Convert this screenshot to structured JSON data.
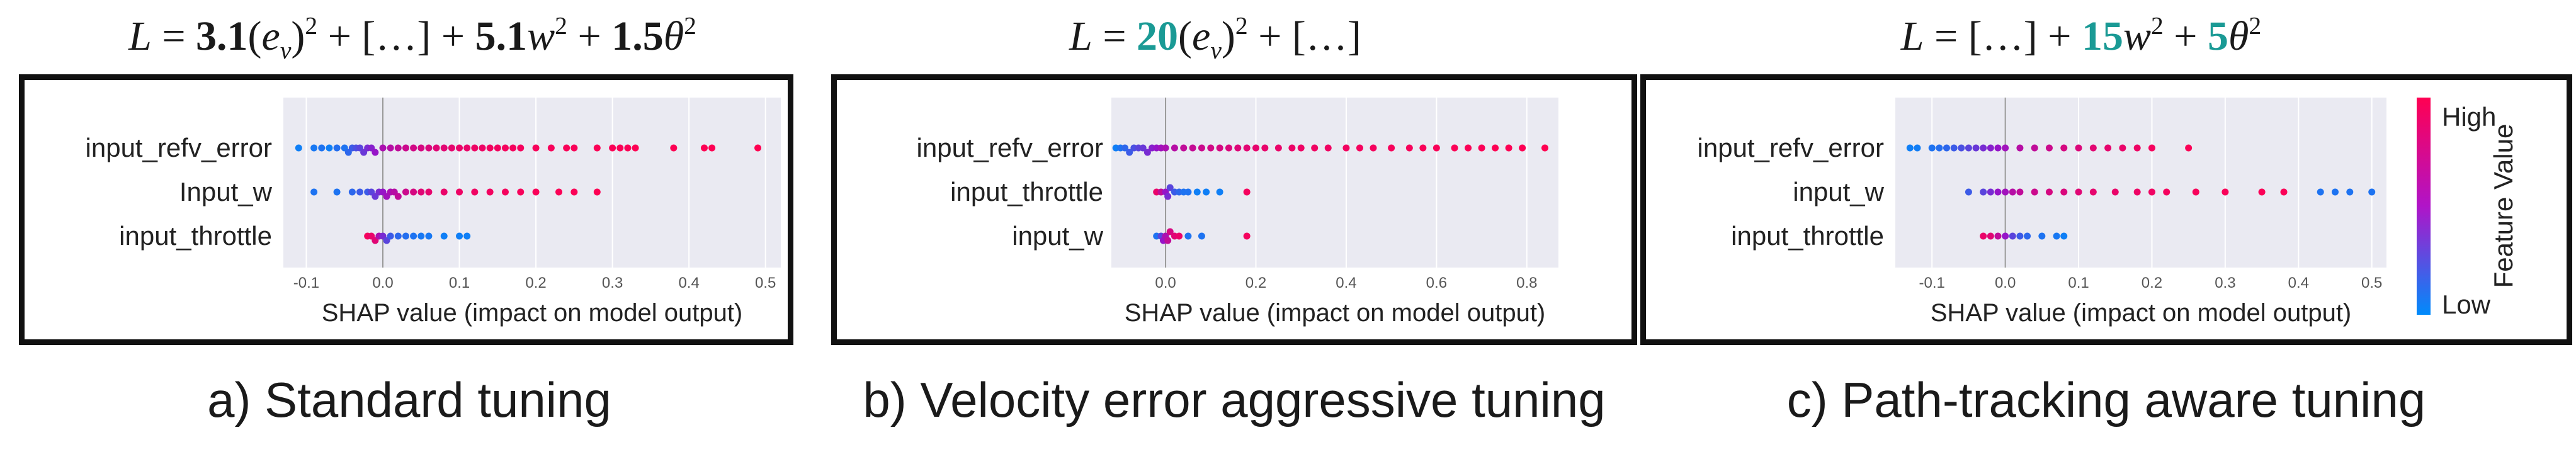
{
  "formulas": {
    "a": {
      "L": "L",
      "eq": " = ",
      "c1": "3.1",
      "open": "(",
      "e": "e",
      "v": "v",
      "close": ")",
      "sq": "2",
      "plus": " + ",
      "dots": "[…]",
      "c2": "5.1",
      "w": "w",
      "c3": "1.5",
      "theta": "θ"
    },
    "b": {
      "L": "L",
      "eq": " = ",
      "c1": "20",
      "open": "(",
      "e": "e",
      "v": "v",
      "close": ")",
      "sq": "2",
      "plus": " + ",
      "dots": "[…]"
    },
    "c": {
      "L": "L",
      "eq": " = ",
      "dots": "[…]",
      "plus": " + ",
      "c2": "15",
      "w": "w",
      "sq": "2",
      "c3": "5",
      "theta": "θ"
    }
  },
  "captions": {
    "a": "a) Standard tuning",
    "b": "b) Velocity error aggressive tuning",
    "c": "c) Path-tracking aware tuning"
  },
  "colorbar": {
    "high": "High",
    "low": "Low",
    "title": "Feature Value"
  },
  "colors": {
    "high": "#ff0052",
    "low": "#008bfb",
    "plot_bg": "#eaeaf2",
    "accent": "#1a9a95"
  },
  "chart_data": [
    {
      "type": "scatter",
      "subtype": "shap-beeswarm",
      "title": "",
      "xlabel": "SHAP value (impact on model output)",
      "ylabel": "",
      "xlim": [
        -0.13,
        0.52
      ],
      "xticks": [
        -0.1,
        0.0,
        0.1,
        0.2,
        0.3,
        0.4,
        0.5
      ],
      "xtick_labels": [
        "-0.1",
        "0.0",
        "0.1",
        "0.2",
        "0.3",
        "0.4",
        "0.5"
      ],
      "features": [
        {
          "name": "input_refv_error",
          "points": [
            [
              -0.11,
              0.05
            ],
            [
              -0.09,
              0.08
            ],
            [
              -0.08,
              0.1
            ],
            [
              -0.07,
              0.05
            ],
            [
              -0.06,
              0.12
            ],
            [
              -0.05,
              0.1
            ],
            [
              -0.045,
              0.15
            ],
            [
              -0.04,
              0.2
            ],
            [
              -0.035,
              0.25
            ],
            [
              -0.03,
              0.3
            ],
            [
              -0.025,
              0.35
            ],
            [
              -0.02,
              0.4
            ],
            [
              -0.015,
              0.45
            ],
            [
              -0.01,
              0.5
            ],
            [
              0.0,
              0.6
            ],
            [
              0.01,
              0.65
            ],
            [
              0.02,
              0.7
            ],
            [
              0.03,
              0.75
            ],
            [
              0.04,
              0.78
            ],
            [
              0.05,
              0.8
            ],
            [
              0.06,
              0.82
            ],
            [
              0.07,
              0.85
            ],
            [
              0.08,
              0.86
            ],
            [
              0.09,
              0.88
            ],
            [
              0.1,
              0.9
            ],
            [
              0.11,
              0.9
            ],
            [
              0.12,
              0.92
            ],
            [
              0.13,
              0.92
            ],
            [
              0.14,
              0.94
            ],
            [
              0.15,
              0.94
            ],
            [
              0.16,
              0.95
            ],
            [
              0.17,
              0.95
            ],
            [
              0.18,
              0.95
            ],
            [
              0.2,
              0.96
            ],
            [
              0.22,
              0.96
            ],
            [
              0.24,
              0.97
            ],
            [
              0.25,
              0.97
            ],
            [
              0.28,
              0.98
            ],
            [
              0.3,
              0.98
            ],
            [
              0.31,
              0.98
            ],
            [
              0.32,
              0.98
            ],
            [
              0.33,
              0.99
            ],
            [
              0.38,
              0.99
            ],
            [
              0.42,
              0.99
            ],
            [
              0.43,
              0.99
            ],
            [
              0.49,
              1.0
            ]
          ]
        },
        {
          "name": "Input_w",
          "points": [
            [
              -0.09,
              0.1
            ],
            [
              -0.06,
              0.1
            ],
            [
              -0.04,
              0.15
            ],
            [
              -0.03,
              0.2
            ],
            [
              -0.02,
              0.2
            ],
            [
              -0.015,
              0.3
            ],
            [
              -0.01,
              0.35
            ],
            [
              -0.005,
              0.4
            ],
            [
              0.0,
              0.5
            ],
            [
              0.005,
              0.55
            ],
            [
              0.01,
              0.6
            ],
            [
              0.015,
              0.65
            ],
            [
              0.02,
              0.7
            ],
            [
              0.03,
              0.75
            ],
            [
              0.04,
              0.8
            ],
            [
              0.05,
              0.85
            ],
            [
              0.06,
              0.88
            ],
            [
              0.08,
              0.9
            ],
            [
              0.1,
              0.92
            ],
            [
              0.12,
              0.93
            ],
            [
              0.14,
              0.94
            ],
            [
              0.16,
              0.95
            ],
            [
              0.18,
              0.96
            ],
            [
              0.2,
              0.97
            ],
            [
              0.23,
              0.98
            ],
            [
              0.25,
              0.98
            ],
            [
              0.28,
              0.99
            ]
          ]
        },
        {
          "name": "input_throttle",
          "points": [
            [
              -0.02,
              0.95
            ],
            [
              -0.015,
              0.9
            ],
            [
              -0.01,
              0.85
            ],
            [
              -0.005,
              0.6
            ],
            [
              0.0,
              0.4
            ],
            [
              0.005,
              0.3
            ],
            [
              0.01,
              0.2
            ],
            [
              0.02,
              0.15
            ],
            [
              0.03,
              0.12
            ],
            [
              0.04,
              0.1
            ],
            [
              0.05,
              0.08
            ],
            [
              0.06,
              0.08
            ],
            [
              0.08,
              0.05
            ],
            [
              0.1,
              0.05
            ],
            [
              0.11,
              0.05
            ]
          ]
        }
      ]
    },
    {
      "type": "scatter",
      "subtype": "shap-beeswarm",
      "title": "",
      "xlabel": "SHAP value (impact on model output)",
      "ylabel": "",
      "xlim": [
        -0.12,
        0.87
      ],
      "xticks": [
        0.0,
        0.2,
        0.4,
        0.6,
        0.8
      ],
      "xtick_labels": [
        "0.0",
        "0.2",
        "0.4",
        "0.6",
        "0.8"
      ],
      "features": [
        {
          "name": "input_refv_error",
          "points": [
            [
              -0.11,
              0.05
            ],
            [
              -0.1,
              0.1
            ],
            [
              -0.09,
              0.15
            ],
            [
              -0.08,
              0.2
            ],
            [
              -0.07,
              0.25
            ],
            [
              -0.06,
              0.3
            ],
            [
              -0.05,
              0.35
            ],
            [
              -0.04,
              0.4
            ],
            [
              -0.03,
              0.45
            ],
            [
              -0.02,
              0.5
            ],
            [
              -0.01,
              0.55
            ],
            [
              0.0,
              0.6
            ],
            [
              0.02,
              0.65
            ],
            [
              0.04,
              0.7
            ],
            [
              0.06,
              0.72
            ],
            [
              0.08,
              0.75
            ],
            [
              0.1,
              0.78
            ],
            [
              0.12,
              0.8
            ],
            [
              0.14,
              0.82
            ],
            [
              0.16,
              0.84
            ],
            [
              0.18,
              0.86
            ],
            [
              0.2,
              0.88
            ],
            [
              0.22,
              0.89
            ],
            [
              0.25,
              0.9
            ],
            [
              0.28,
              0.91
            ],
            [
              0.3,
              0.92
            ],
            [
              0.33,
              0.93
            ],
            [
              0.36,
              0.93
            ],
            [
              0.4,
              0.94
            ],
            [
              0.43,
              0.95
            ],
            [
              0.46,
              0.95
            ],
            [
              0.5,
              0.96
            ],
            [
              0.54,
              0.96
            ],
            [
              0.57,
              0.97
            ],
            [
              0.6,
              0.97
            ],
            [
              0.64,
              0.98
            ],
            [
              0.67,
              0.98
            ],
            [
              0.7,
              0.98
            ],
            [
              0.73,
              0.99
            ],
            [
              0.76,
              0.99
            ],
            [
              0.79,
              0.99
            ],
            [
              0.84,
              1.0
            ]
          ]
        },
        {
          "name": "input_throttle",
          "points": [
            [
              -0.02,
              0.9
            ],
            [
              -0.01,
              0.7
            ],
            [
              0.0,
              0.5
            ],
            [
              0.005,
              0.4
            ],
            [
              0.01,
              0.3
            ],
            [
              0.02,
              0.2
            ],
            [
              0.03,
              0.15
            ],
            [
              0.04,
              0.1
            ],
            [
              0.05,
              0.1
            ],
            [
              0.07,
              0.05
            ],
            [
              0.09,
              0.05
            ],
            [
              0.12,
              0.05
            ],
            [
              0.18,
              0.95
            ]
          ]
        },
        {
          "name": "input_w",
          "points": [
            [
              -0.02,
              0.1
            ],
            [
              -0.01,
              0.3
            ],
            [
              -0.005,
              0.5
            ],
            [
              0.0,
              0.6
            ],
            [
              0.005,
              0.7
            ],
            [
              0.01,
              0.8
            ],
            [
              0.02,
              0.85
            ],
            [
              0.03,
              0.9
            ],
            [
              0.05,
              0.1
            ],
            [
              0.08,
              0.1
            ],
            [
              0.18,
              0.95
            ]
          ]
        }
      ]
    },
    {
      "type": "scatter",
      "subtype": "shap-beeswarm",
      "title": "",
      "xlabel": "SHAP value (impact on model output)",
      "ylabel": "",
      "xlim": [
        -0.15,
        0.52
      ],
      "xticks": [
        -0.1,
        0.0,
        0.1,
        0.2,
        0.3,
        0.4,
        0.5
      ],
      "xtick_labels": [
        "-0.1",
        "0.0",
        "0.1",
        "0.2",
        "0.3",
        "0.4",
        "0.5"
      ],
      "features": [
        {
          "name": "input_refv_error",
          "points": [
            [
              -0.13,
              0.05
            ],
            [
              -0.12,
              0.06
            ],
            [
              -0.1,
              0.1
            ],
            [
              -0.09,
              0.12
            ],
            [
              -0.08,
              0.15
            ],
            [
              -0.07,
              0.2
            ],
            [
              -0.06,
              0.25
            ],
            [
              -0.05,
              0.3
            ],
            [
              -0.04,
              0.35
            ],
            [
              -0.03,
              0.4
            ],
            [
              -0.02,
              0.45
            ],
            [
              -0.01,
              0.5
            ],
            [
              0.0,
              0.55
            ],
            [
              0.02,
              0.65
            ],
            [
              0.04,
              0.7
            ],
            [
              0.06,
              0.75
            ],
            [
              0.08,
              0.8
            ],
            [
              0.1,
              0.83
            ],
            [
              0.12,
              0.86
            ],
            [
              0.14,
              0.88
            ],
            [
              0.16,
              0.9
            ],
            [
              0.18,
              0.92
            ],
            [
              0.2,
              0.95
            ],
            [
              0.25,
              0.98
            ]
          ]
        },
        {
          "name": "input_w",
          "points": [
            [
              -0.05,
              0.2
            ],
            [
              -0.03,
              0.3
            ],
            [
              -0.02,
              0.4
            ],
            [
              -0.01,
              0.5
            ],
            [
              0.0,
              0.55
            ],
            [
              0.01,
              0.65
            ],
            [
              0.02,
              0.7
            ],
            [
              0.04,
              0.75
            ],
            [
              0.06,
              0.8
            ],
            [
              0.08,
              0.82
            ],
            [
              0.1,
              0.85
            ],
            [
              0.12,
              0.88
            ],
            [
              0.15,
              0.9
            ],
            [
              0.18,
              0.92
            ],
            [
              0.2,
              0.93
            ],
            [
              0.22,
              0.95
            ],
            [
              0.26,
              0.96
            ],
            [
              0.3,
              0.97
            ],
            [
              0.35,
              0.98
            ],
            [
              0.38,
              0.98
            ],
            [
              0.43,
              0.1
            ],
            [
              0.45,
              0.1
            ],
            [
              0.47,
              0.1
            ],
            [
              0.5,
              0.1
            ]
          ]
        },
        {
          "name": "input_throttle",
          "points": [
            [
              -0.03,
              0.9
            ],
            [
              -0.02,
              0.85
            ],
            [
              -0.01,
              0.7
            ],
            [
              0.0,
              0.5
            ],
            [
              0.01,
              0.3
            ],
            [
              0.02,
              0.2
            ],
            [
              0.03,
              0.15
            ],
            [
              0.05,
              0.1
            ],
            [
              0.07,
              0.08
            ],
            [
              0.08,
              0.05
            ]
          ]
        }
      ]
    }
  ]
}
